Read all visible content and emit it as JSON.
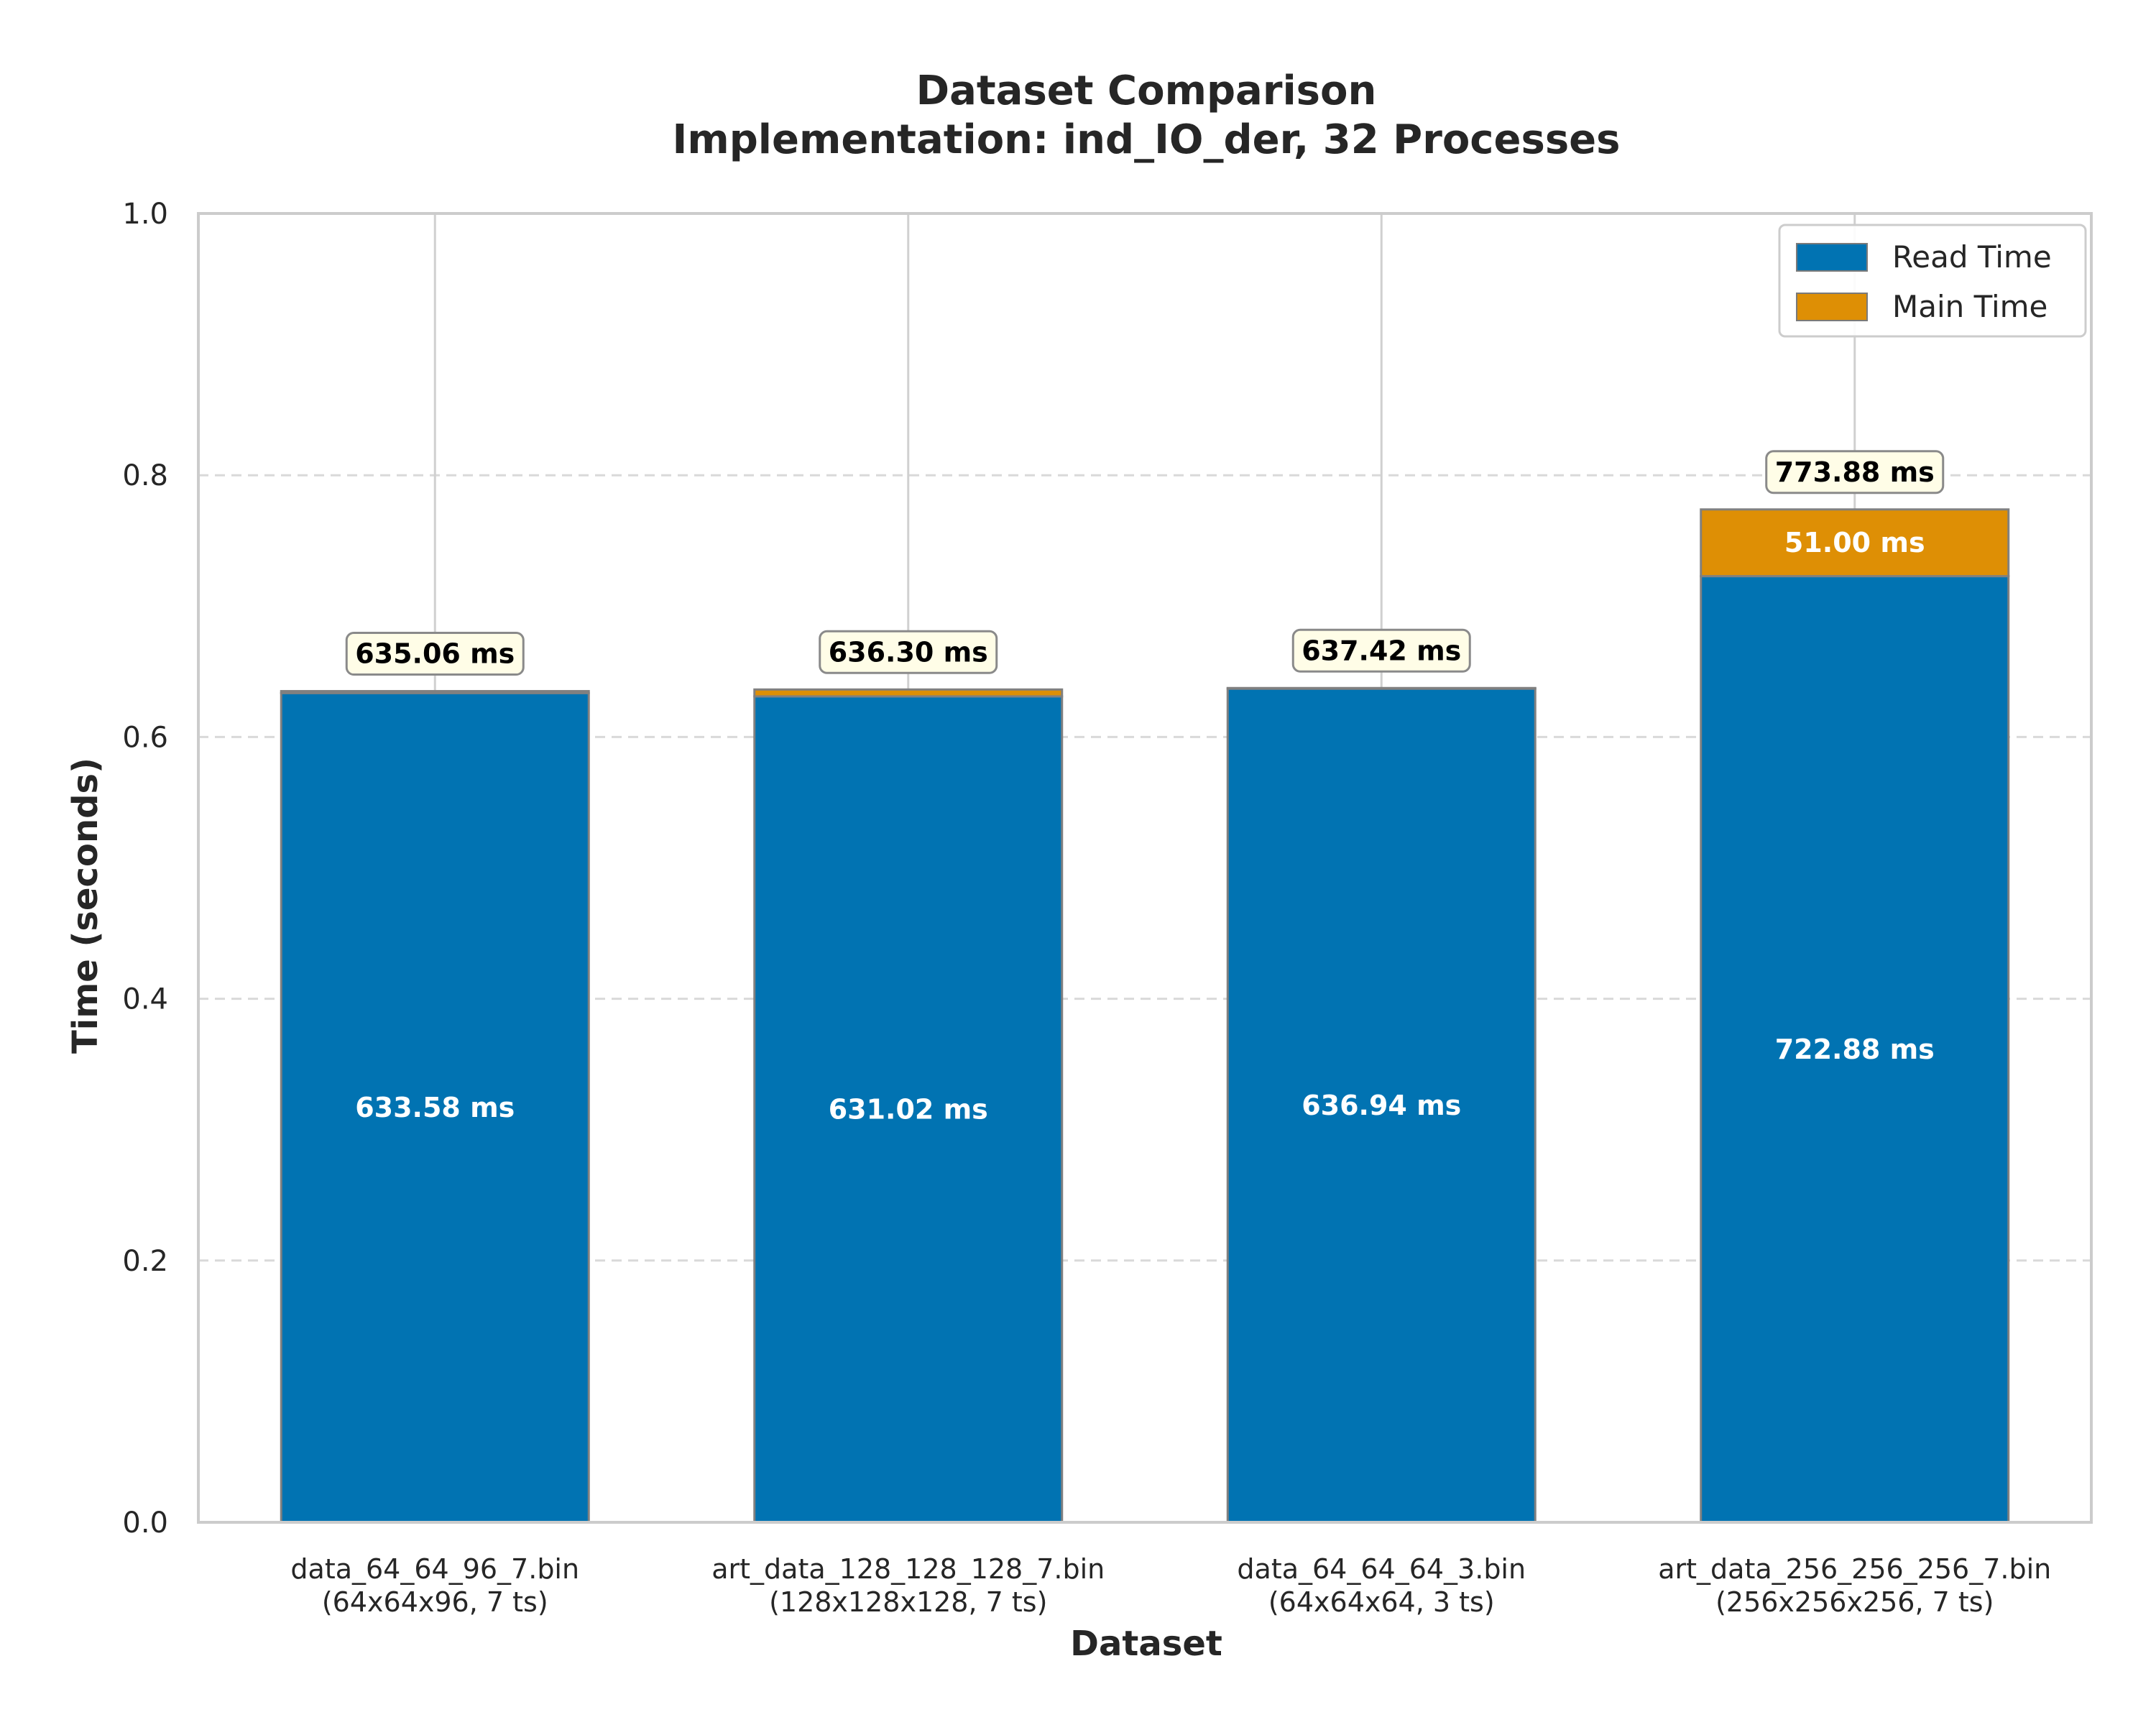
{
  "chart_data": {
    "type": "bar",
    "stacked": true,
    "title": "Dataset Comparison",
    "subtitle": "Implementation: ind_IO_der, 32 Processes",
    "xlabel": "Dataset",
    "ylabel": "Time (seconds)",
    "ylim": [
      0,
      1.0
    ],
    "yticks": [
      "0.0",
      "0.2",
      "0.4",
      "0.6",
      "0.8",
      "1.0"
    ],
    "grid": true,
    "legend_position": "top-right",
    "categories": [
      {
        "name": "data_64_64_96_7.bin",
        "detail": "(64x64x96, 7 ts)"
      },
      {
        "name": "art_data_128_128_128_7.bin",
        "detail": "(128x128x128, 7 ts)"
      },
      {
        "name": "data_64_64_64_3.bin",
        "detail": "(64x64x64, 3 ts)"
      },
      {
        "name": "art_data_256_256_256_7.bin",
        "detail": "(256x256x256, 7 ts)"
      }
    ],
    "series": [
      {
        "name": "Read Time",
        "color": "#0173b2",
        "values": [
          0.63358,
          0.63102,
          0.63694,
          0.72288
        ],
        "labels": [
          "633.58 ms",
          "631.02 ms",
          "636.94 ms",
          "722.88 ms"
        ]
      },
      {
        "name": "Main Time",
        "color": "#de8f05",
        "values": [
          0.00148,
          0.00528,
          0.00048,
          0.051
        ],
        "labels": [
          "",
          "",
          "",
          "51.00 ms"
        ]
      }
    ],
    "totals": [
      "635.06 ms",
      "636.30 ms",
      "637.42 ms",
      "773.88 ms"
    ]
  }
}
